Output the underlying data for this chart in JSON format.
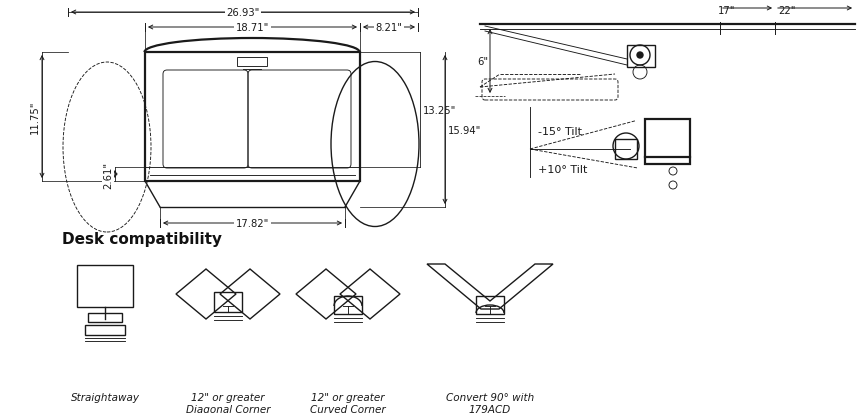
{
  "bg_color": "#ffffff",
  "lc": "#1a1a1a",
  "fig_width": 8.64,
  "fig_height": 4.14,
  "dpi": 100,
  "dim_26": "26.93\"",
  "dim_18": "18.71\"",
  "dim_8": "8.21\"",
  "dim_11": "11.75\"",
  "dim_261": "2.61\"",
  "dim_13": "13.25\"",
  "dim_15": "15.94\"",
  "dim_17b": "17.82\"",
  "dim_17": "17\"",
  "dim_22": "22\"",
  "dim_6": "6\"",
  "tilt_neg": "-15° Tilt",
  "tilt_pos": "+10° Tilt",
  "desk_title": "Desk compatibility",
  "desk_labels": [
    "Straightaway",
    "12\" or greater\nDiagonal Corner",
    "12\" or greater\nCurved Corner",
    "Convert 90° with\n179ACD"
  ]
}
